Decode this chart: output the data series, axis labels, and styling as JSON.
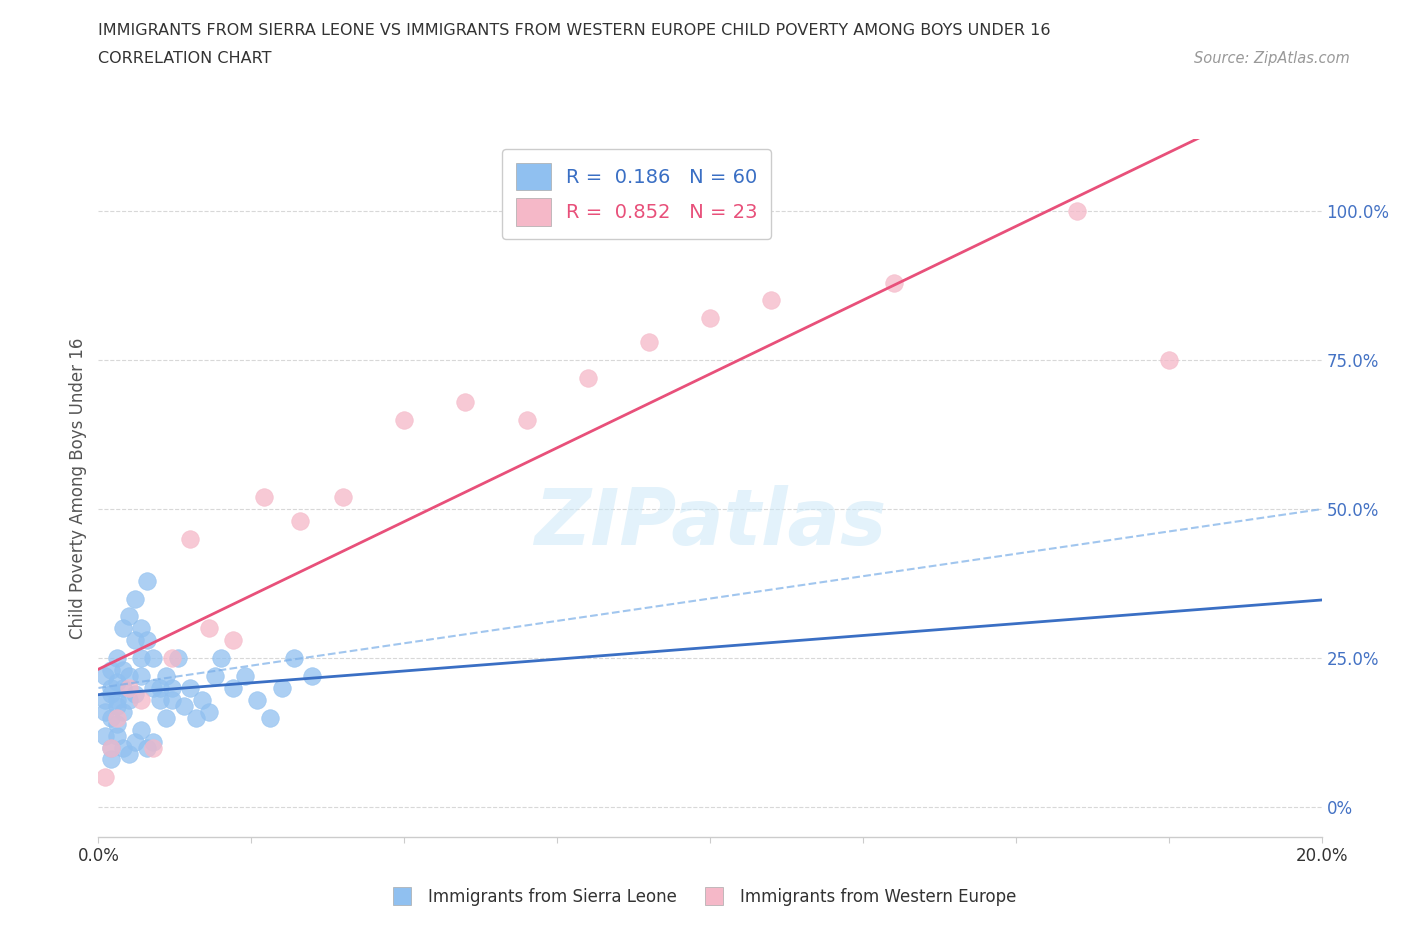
{
  "title": "IMMIGRANTS FROM SIERRA LEONE VS IMMIGRANTS FROM WESTERN EUROPE CHILD POVERTY AMONG BOYS UNDER 16",
  "subtitle": "CORRELATION CHART",
  "source": "Source: ZipAtlas.com",
  "ylabel": "Child Poverty Among Boys Under 16",
  "xlim": [
    0.0,
    0.2
  ],
  "ylim": [
    -0.05,
    1.12
  ],
  "xticks": [
    0.0,
    0.025,
    0.05,
    0.075,
    0.1,
    0.125,
    0.15,
    0.175,
    0.2
  ],
  "yticks": [
    0.0,
    0.25,
    0.5,
    0.75,
    1.0
  ],
  "color_sl": "#90c0f0",
  "color_we": "#f5b8c8",
  "trend_color_sl": "#3a6fc4",
  "trend_color_sl_dashed": "#7aaee8",
  "trend_color_we": "#e8507a",
  "background_color": "#ffffff",
  "grid_color": "#d8d8d8",
  "sl_x": [
    0.001,
    0.001,
    0.001,
    0.002,
    0.002,
    0.002,
    0.002,
    0.003,
    0.003,
    0.003,
    0.003,
    0.003,
    0.004,
    0.004,
    0.004,
    0.004,
    0.005,
    0.005,
    0.005,
    0.006,
    0.006,
    0.006,
    0.007,
    0.007,
    0.007,
    0.008,
    0.008,
    0.009,
    0.009,
    0.01,
    0.01,
    0.011,
    0.011,
    0.012,
    0.012,
    0.013,
    0.014,
    0.015,
    0.016,
    0.017,
    0.018,
    0.019,
    0.02,
    0.022,
    0.024,
    0.026,
    0.028,
    0.03,
    0.032,
    0.035,
    0.001,
    0.002,
    0.002,
    0.003,
    0.004,
    0.005,
    0.006,
    0.007,
    0.008,
    0.009
  ],
  "sl_y": [
    0.18,
    0.16,
    0.22,
    0.2,
    0.15,
    0.19,
    0.23,
    0.17,
    0.21,
    0.14,
    0.25,
    0.18,
    0.23,
    0.16,
    0.3,
    0.2,
    0.18,
    0.22,
    0.32,
    0.19,
    0.35,
    0.28,
    0.25,
    0.3,
    0.22,
    0.38,
    0.28,
    0.2,
    0.25,
    0.2,
    0.18,
    0.22,
    0.15,
    0.2,
    0.18,
    0.25,
    0.17,
    0.2,
    0.15,
    0.18,
    0.16,
    0.22,
    0.25,
    0.2,
    0.22,
    0.18,
    0.15,
    0.2,
    0.25,
    0.22,
    0.12,
    0.1,
    0.08,
    0.12,
    0.1,
    0.09,
    0.11,
    0.13,
    0.1,
    0.11
  ],
  "we_x": [
    0.001,
    0.002,
    0.003,
    0.005,
    0.007,
    0.009,
    0.012,
    0.015,
    0.018,
    0.022,
    0.027,
    0.033,
    0.04,
    0.05,
    0.06,
    0.07,
    0.08,
    0.09,
    0.1,
    0.11,
    0.13,
    0.16,
    0.175
  ],
  "we_y": [
    0.05,
    0.1,
    0.15,
    0.2,
    0.18,
    0.1,
    0.25,
    0.45,
    0.3,
    0.28,
    0.52,
    0.48,
    0.52,
    0.65,
    0.68,
    0.65,
    0.72,
    0.78,
    0.82,
    0.85,
    0.88,
    1.0,
    0.75
  ]
}
